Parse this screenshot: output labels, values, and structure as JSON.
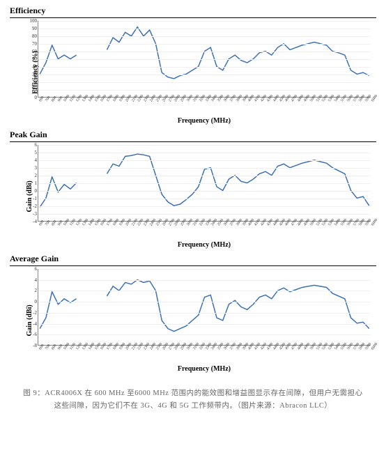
{
  "line_color": "#3b6fb6",
  "line_width": 1.5,
  "grid_color": "#f0f0f0",
  "axis_color": "#888888",
  "background_color": "#ffffff",
  "x_values": [
    600,
    700,
    800,
    900,
    1000,
    1100,
    1200,
    1300,
    1400,
    1500,
    1600,
    1700,
    1800,
    1900,
    2000,
    2100,
    2200,
    2300,
    2400,
    2500,
    2600,
    2700,
    2800,
    2900,
    3000,
    3100,
    3200,
    3300,
    3400,
    3500,
    3600,
    3700,
    3800,
    3900,
    4000,
    4100,
    4200,
    4300,
    4400,
    4500,
    4600,
    4700,
    4800,
    4900,
    5000,
    5100,
    5200,
    5300,
    5400,
    5500,
    5600,
    5700,
    5800,
    5900,
    6000
  ],
  "x_tick_labels": [
    "600",
    "700",
    "800",
    "900",
    "1000",
    "1100",
    "1200",
    "1300",
    "1400",
    "1500",
    "1600",
    "1700",
    "1800",
    "1900",
    "2000",
    "2100",
    "2200",
    "2300",
    "2400",
    "2500",
    "2600",
    "2700",
    "2800",
    "2900",
    "3000",
    "3100",
    "3200",
    "3300",
    "3400",
    "3500",
    "3600",
    "3700",
    "3800",
    "3900",
    "4000",
    "4100",
    "4200",
    "4300",
    "4400",
    "4500",
    "4600",
    "4700",
    "4800",
    "4900",
    "5000",
    "5100",
    "5200",
    "5300",
    "5400",
    "5500",
    "5600",
    "5700",
    "5800",
    "5900",
    "6000"
  ],
  "x_label": "Frequency (MHz)",
  "charts": [
    {
      "key": "efficiency",
      "title": "Efficiency",
      "ylabel": "Efficiency (%)",
      "ylim": [
        0,
        100
      ],
      "ytick_step": 10,
      "segments": [
        {
          "x": [
            600,
            700,
            800,
            900,
            1000,
            1100,
            1200
          ],
          "y": [
            30,
            45,
            68,
            50,
            55,
            50,
            55
          ]
        },
        {
          "x": [
            1700,
            1800,
            1900,
            2000,
            2100,
            2200,
            2300,
            2400,
            2500,
            2600,
            2700,
            2800,
            2900,
            3000,
            3100,
            3200,
            3300,
            3400,
            3500,
            3600,
            3700,
            3800,
            3900,
            4000,
            4100,
            4200,
            4300,
            4400,
            4500,
            4600,
            4700,
            4800,
            4900,
            5000,
            5100,
            5200,
            5300,
            5400,
            5500,
            5600,
            5700,
            5800,
            5900,
            6000
          ],
          "y": [
            62,
            78,
            72,
            85,
            80,
            92,
            80,
            88,
            70,
            32,
            26,
            24,
            28,
            30,
            35,
            40,
            60,
            65,
            40,
            35,
            50,
            55,
            48,
            45,
            50,
            58,
            60,
            55,
            65,
            70,
            62,
            65,
            68,
            70,
            72,
            70,
            68,
            60,
            58,
            55,
            35,
            30,
            32,
            28
          ]
        }
      ]
    },
    {
      "key": "peakgain",
      "title": "Peak Gain",
      "ylabel": "Gain (dBi)",
      "ylim": [
        -4,
        6
      ],
      "ytick_step": 1,
      "segments": [
        {
          "x": [
            600,
            700,
            800,
            900,
            1000,
            1100,
            1200
          ],
          "y": [
            -2.2,
            -1.0,
            1.8,
            -0.2,
            0.8,
            0.2,
            1.0
          ]
        },
        {
          "x": [
            1700,
            1800,
            1900,
            2000,
            2100,
            2200,
            2300,
            2400,
            2500,
            2600,
            2700,
            2800,
            2900,
            3000,
            3100,
            3200,
            3300,
            3400,
            3500,
            3600,
            3700,
            3800,
            3900,
            4000,
            4100,
            4200,
            4300,
            4400,
            4500,
            4600,
            4700,
            4800,
            4900,
            5000,
            5100,
            5200,
            5300,
            5400,
            5500,
            5600,
            5700,
            5800,
            5900,
            6000
          ],
          "y": [
            2.2,
            3.5,
            3.2,
            4.5,
            4.6,
            4.8,
            4.7,
            4.5,
            2.0,
            -0.5,
            -1.5,
            -2.0,
            -1.8,
            -1.2,
            -0.5,
            0.5,
            2.8,
            3.0,
            0.5,
            0.0,
            1.5,
            2.0,
            1.2,
            1.0,
            1.5,
            2.2,
            2.5,
            2.0,
            3.2,
            3.5,
            3.0,
            3.3,
            3.6,
            3.8,
            4.0,
            3.8,
            3.6,
            3.0,
            2.6,
            2.2,
            0.0,
            -1.0,
            -0.8,
            -2.0
          ]
        }
      ]
    },
    {
      "key": "avggain",
      "title": "Average Gain",
      "ylabel": "Gain (dBi)",
      "ylim": [
        -8,
        6
      ],
      "ytick_step": 2,
      "segments": [
        {
          "x": [
            600,
            700,
            800,
            900,
            1000,
            1100,
            1200
          ],
          "y": [
            -5.0,
            -3.0,
            1.8,
            -0.5,
            0.5,
            -0.2,
            0.5
          ]
        },
        {
          "x": [
            1700,
            1800,
            1900,
            2000,
            2100,
            2200,
            2300,
            2400,
            2500,
            2600,
            2700,
            2800,
            2900,
            3000,
            3100,
            3200,
            3300,
            3400,
            3500,
            3600,
            3700,
            3800,
            3900,
            4000,
            4100,
            4200,
            4300,
            4400,
            4500,
            4600,
            4700,
            4800,
            4900,
            5000,
            5100,
            5200,
            5300,
            5400,
            5500,
            5600,
            5700,
            5800,
            5900,
            6000
          ],
          "y": [
            1.0,
            2.8,
            2.0,
            3.5,
            3.2,
            4.0,
            3.5,
            3.8,
            2.0,
            -3.5,
            -5.0,
            -5.5,
            -5.0,
            -4.5,
            -3.5,
            -2.5,
            0.8,
            1.2,
            -3.0,
            -3.5,
            -0.5,
            0.2,
            -1.0,
            -1.5,
            -0.5,
            0.8,
            1.2,
            0.5,
            2.0,
            2.5,
            1.8,
            2.2,
            2.6,
            2.8,
            3.0,
            2.8,
            2.6,
            1.5,
            1.0,
            0.5,
            -3.0,
            -4.0,
            -3.8,
            -5.0
          ]
        }
      ]
    }
  ],
  "caption_text": "图 9：ACR4006X 在 600 MHz 至6000 MHz 范围内的能效图和增益图显示存在间隙，但用户无需担心这些间隙，因为它们不在 3G、4G 和 5G 工作频带内。（图片来源：Abracon LLC）"
}
